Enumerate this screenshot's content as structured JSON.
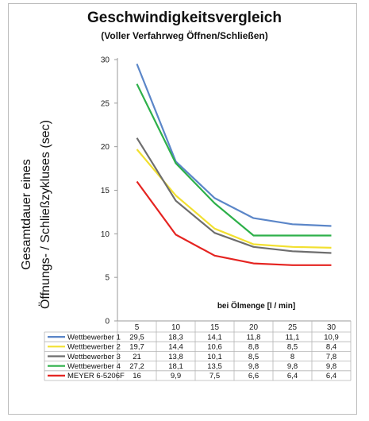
{
  "chart_data": {
    "type": "line",
    "title": "Geschwindigkeitsvergleich",
    "subtitle": "(Voller Verfahrweg Öffnen/Schließen)",
    "ylabel": "Gesamtdauer eines\nÖffnungs- / Schließzykluses (sec)",
    "xlabel": "bei Ölmenge [l / min]",
    "ylim": [
      0,
      30
    ],
    "yticks": [
      0,
      5,
      10,
      15,
      20,
      25,
      30
    ],
    "grid": false,
    "legend": "data table below chart",
    "x": [
      5,
      10,
      15,
      20,
      25,
      30
    ],
    "x_labels": [
      "5",
      "10",
      "15",
      "20",
      "25",
      "30"
    ],
    "series": [
      {
        "name": "Wettbewerber 1",
        "color": "#5b86c8",
        "values": [
          29.5,
          18.3,
          14.1,
          11.8,
          11.1,
          10.9
        ],
        "labels": [
          "29,5",
          "18,3",
          "14,1",
          "11,8",
          "11,1",
          "10,9"
        ]
      },
      {
        "name": "Wettbewerber 2",
        "color": "#f2e030",
        "values": [
          19.7,
          14.4,
          10.6,
          8.8,
          8.5,
          8.4
        ],
        "labels": [
          "19,7",
          "14,4",
          "10,6",
          "8,8",
          "8,5",
          "8,4"
        ]
      },
      {
        "name": "Wettbewerber 3",
        "color": "#6e6e6e",
        "values": [
          21,
          13.8,
          10.1,
          8.5,
          8,
          7.8
        ],
        "labels": [
          "21",
          "13,8",
          "10,1",
          "8,5",
          "8",
          "7,8"
        ]
      },
      {
        "name": "Wettbewerber 4",
        "color": "#2eb04a",
        "values": [
          27.2,
          18.1,
          13.5,
          9.8,
          9.8,
          9.8
        ],
        "labels": [
          "27,2",
          "18,1",
          "13,5",
          "9,8",
          "9,8",
          "9,8"
        ]
      },
      {
        "name": "MEYER 6-5206F",
        "color": "#e52421",
        "values": [
          16,
          9.9,
          7.5,
          6.6,
          6.4,
          6.4
        ],
        "labels": [
          "16",
          "9,9",
          "7,5",
          "6,6",
          "6,4",
          "6,4"
        ]
      }
    ]
  }
}
